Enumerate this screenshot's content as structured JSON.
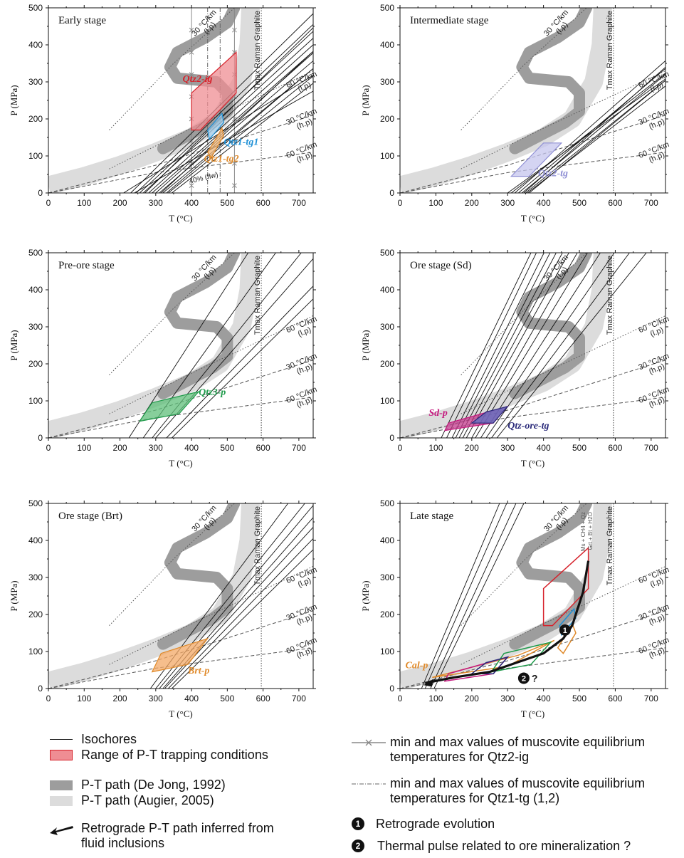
{
  "chart_data": [
    {
      "type": "line",
      "title": "Early stage",
      "xlabel": "T (°C)",
      "ylabel": "P (MPa)",
      "xlim": [
        0,
        740
      ],
      "ylim": [
        0,
        500
      ],
      "xticks": [
        0,
        100,
        200,
        300,
        400,
        500,
        600,
        700
      ],
      "yticks": [
        0,
        100,
        200,
        300,
        400,
        500
      ],
      "gradient_labels": [
        "30 °C/km\n(l.p)",
        "60 °C/km\n(l.p)",
        "30 °C/km\n(h.p)",
        "60 °C/km\n(h.p)"
      ],
      "tmax_label": "Tmax Raman Graphite",
      "tmax_T": 595,
      "inclusions": [
        {
          "name": "Qtz2-ig",
          "color": "#d6222b",
          "fill": "#ef8d93",
          "polygon": [
            [
              400,
              170
            ],
            [
              400,
              270
            ],
            [
              525,
              380
            ],
            [
              525,
              270
            ],
            [
              425,
              170
            ]
          ],
          "label_at": [
            375,
            300
          ]
        },
        {
          "name": "Qtz1-tg1",
          "color": "#1e90d6",
          "fill": "#a8d3f0",
          "polygon": [
            [
              445,
              170
            ],
            [
              485,
              215
            ],
            [
              490,
              190
            ],
            [
              450,
              145
            ]
          ],
          "label_at": [
            490,
            130
          ]
        },
        {
          "name": "Qtz1-tg2",
          "color": "#e08a2a",
          "fill": "#f0b77a",
          "polygon": [
            [
              445,
              110
            ],
            [
              485,
              175
            ],
            [
              490,
              155
            ],
            [
              455,
              95
            ]
          ],
          "label_at": [
            435,
            85
          ]
        }
      ],
      "annotations": [
        "40% (flw)"
      ],
      "muscovite_min_max_T": [
        400,
        520
      ],
      "muscovite_qtz1_T": [
        445,
        480
      ]
    },
    {
      "type": "line",
      "title": "Intermediate stage",
      "xlabel": "T (°C)",
      "ylabel": "P (MPa)",
      "xlim": [
        0,
        740
      ],
      "ylim": [
        0,
        500
      ],
      "xticks": [
        0,
        100,
        200,
        300,
        400,
        500,
        600,
        700
      ],
      "yticks": [
        0,
        100,
        200,
        300,
        400,
        500
      ],
      "gradient_labels": [
        "30 °C/km\n(l.p)",
        "60 °C/km\n(l.p)",
        "30 °C/km\n(h.p)",
        "60 °C/km\n(h.p)"
      ],
      "tmax_label": "Tmax Raman Graphite",
      "tmax_T": 595,
      "inclusions": [
        {
          "name": "Qtz2-tg",
          "color": "#8f8fd4",
          "fill": "#c6c6ee",
          "polygon": [
            [
              310,
              45
            ],
            [
              360,
              45
            ],
            [
              450,
              135
            ],
            [
              400,
              135
            ]
          ],
          "label_at": [
            385,
            45
          ]
        }
      ]
    },
    {
      "type": "line",
      "title": "Pre-ore stage",
      "xlabel": "T (°C)",
      "ylabel": "P (MPa)",
      "xlim": [
        0,
        740
      ],
      "ylim": [
        0,
        500
      ],
      "xticks": [
        0,
        100,
        200,
        300,
        400,
        500,
        600,
        700
      ],
      "yticks": [
        0,
        100,
        200,
        300,
        400,
        500
      ],
      "gradient_labels": [
        "30 °C/km\n(l.p)",
        "60 °C/km\n(l.p)",
        "30 °C/km\n(h.p)",
        "60 °C/km\n(h.p)"
      ],
      "tmax_label": "Tmax Raman Graphite",
      "tmax_T": 595,
      "inclusions": [
        {
          "name": "Qtz3-p",
          "color": "#1e9a4a",
          "fill": "#5fbf7a",
          "polygon": [
            [
              255,
              45
            ],
            [
              365,
              65
            ],
            [
              420,
              125
            ],
            [
              290,
              95
            ]
          ],
          "label_at": [
            420,
            115
          ]
        }
      ]
    },
    {
      "type": "line",
      "title": "Ore stage (Sd)",
      "xlabel": "T (°C)",
      "ylabel": "P (MPa)",
      "xlim": [
        0,
        740
      ],
      "ylim": [
        0,
        500
      ],
      "xticks": [
        0,
        100,
        200,
        300,
        400,
        500,
        600,
        700
      ],
      "yticks": [
        0,
        100,
        200,
        300,
        400,
        500
      ],
      "gradient_labels": [
        "30 °C/km\n(l.p)",
        "60 °C/km\n(l.p)",
        "30 °C/km\n(h.p)",
        "60 °C/km\n(h.p)"
      ],
      "tmax_label": "Tmax Raman Graphite",
      "tmax_T": 595,
      "inclusions": [
        {
          "name": "Sd-p",
          "color": "#c4177d",
          "fill": "#c3398c",
          "polygon": [
            [
              125,
              20
            ],
            [
              260,
              40
            ],
            [
              300,
              85
            ],
            [
              135,
              40
            ]
          ],
          "label_at": [
            80,
            60
          ]
        },
        {
          "name": "Qtz-ore-tg",
          "color": "#2a2a7a",
          "fill": "#5a6dc0",
          "polygon": [
            [
              200,
              40
            ],
            [
              260,
              40
            ],
            [
              300,
              85
            ],
            [
              240,
              70
            ]
          ],
          "label_at": [
            300,
            25
          ]
        }
      ]
    },
    {
      "type": "line",
      "title": "Ore stage (Brt)",
      "xlabel": "T (°C)",
      "ylabel": "P (MPa)",
      "xlim": [
        0,
        740
      ],
      "ylim": [
        0,
        500
      ],
      "xticks": [
        0,
        100,
        200,
        300,
        400,
        500,
        600,
        700
      ],
      "yticks": [
        0,
        100,
        200,
        300,
        400,
        500
      ],
      "gradient_labels": [
        "30 °C/km\n(l.p)",
        "60 °C/km\n(l.p)",
        "30 °C/km\n(h.p)",
        "60 °C/km\n(h.p)"
      ],
      "tmax_label": "Tmax Raman Graphite",
      "tmax_T": 595,
      "inclusions": [
        {
          "name": "Brt-p",
          "color": "#e08a2a",
          "fill": "#f3a865",
          "polygon": [
            [
              290,
              45
            ],
            [
              390,
              65
            ],
            [
              445,
              135
            ],
            [
              315,
              95
            ]
          ],
          "label_at": [
            390,
            40
          ]
        }
      ]
    },
    {
      "type": "line",
      "title": "Late stage",
      "xlabel": "T (°C)",
      "ylabel": "P (MPa)",
      "xlim": [
        0,
        740
      ],
      "ylim": [
        0,
        500
      ],
      "xticks": [
        0,
        100,
        200,
        300,
        400,
        500,
        600,
        700
      ],
      "yticks": [
        0,
        100,
        200,
        300,
        400,
        500
      ],
      "gradient_labels": [
        "30 °C/km\n(l.p)",
        "60 °C/km\n(l.p)",
        "30 °C/km\n(h.p)",
        "60 °C/km\n(h.p)"
      ],
      "tmax_label": "Tmax Raman Graphite",
      "tmax_T": 595,
      "reaction_labels": [
        "Ms + CH4 + Qz",
        "Grt + Bt + H2O"
      ],
      "inclusions": [
        {
          "name": "Cal-p",
          "color": "#e08a2a",
          "label_at": [
            15,
            55
          ]
        }
      ],
      "outline_polygons": [
        {
          "color": "#d6222b",
          "polygon": [
            [
              400,
              170
            ],
            [
              400,
              270
            ],
            [
              525,
              380
            ],
            [
              525,
              270
            ],
            [
              425,
              170
            ]
          ]
        },
        {
          "color": "#1e90d6",
          "polygon": [
            [
              445,
              170
            ],
            [
              485,
              215
            ],
            [
              490,
              190
            ],
            [
              450,
              145
            ]
          ]
        },
        {
          "color": "#e08a2a",
          "polygon": [
            [
              440,
              110
            ],
            [
              480,
              175
            ],
            [
              490,
              150
            ],
            [
              455,
              95
            ]
          ]
        },
        {
          "color": "#e08a2a",
          "polygon": [
            [
              90,
              30
            ],
            [
              300,
              60
            ],
            [
              430,
              130
            ],
            [
              330,
              90
            ]
          ]
        },
        {
          "color": "#c4177d",
          "polygon": [
            [
              125,
              20
            ],
            [
              260,
              40
            ],
            [
              300,
              85
            ],
            [
              135,
              40
            ]
          ]
        },
        {
          "color": "#1e9a4a",
          "polygon": [
            [
              255,
              45
            ],
            [
              365,
              65
            ],
            [
              420,
              125
            ],
            [
              290,
              95
            ]
          ]
        },
        {
          "color": "#2a2a7a",
          "polygon": [
            [
              200,
              40
            ],
            [
              260,
              40
            ],
            [
              300,
              85
            ],
            [
              240,
              70
            ]
          ]
        }
      ],
      "retrograde_path": [
        [
          525,
          345
        ],
        [
          510,
          260
        ],
        [
          480,
          170
        ],
        [
          455,
          135
        ],
        [
          400,
          95
        ],
        [
          250,
          45
        ],
        [
          150,
          30
        ],
        [
          70,
          15
        ]
      ],
      "markers": [
        {
          "label": "1",
          "at": [
            460,
            158
          ]
        },
        {
          "label": "2",
          "at": [
            345,
            28
          ],
          "suffix": "?"
        }
      ]
    }
  ],
  "legend": {
    "isochores": "Isochores",
    "trapping": "Range of P-T trapping conditions",
    "path_dejong": "P-T path (De Jong, 1992)",
    "path_augier": "P-T path (Augier, 2005)",
    "retrograde_arrow": "Retrograde P-T path inferred from\nfluid inclusions",
    "muscovite_ig": "min and max values of muscovite equilibrium\ntemperatures for Qtz2-ig",
    "muscovite_tg": "min and max values of muscovite equilibrium\ntemperatures for Qtz1-tg (1,2)",
    "marker1_label": "1",
    "marker1_text": "Retrograde evolution",
    "marker2_label": "2",
    "marker2_text": "Thermal pulse related to ore mineralization ?"
  }
}
